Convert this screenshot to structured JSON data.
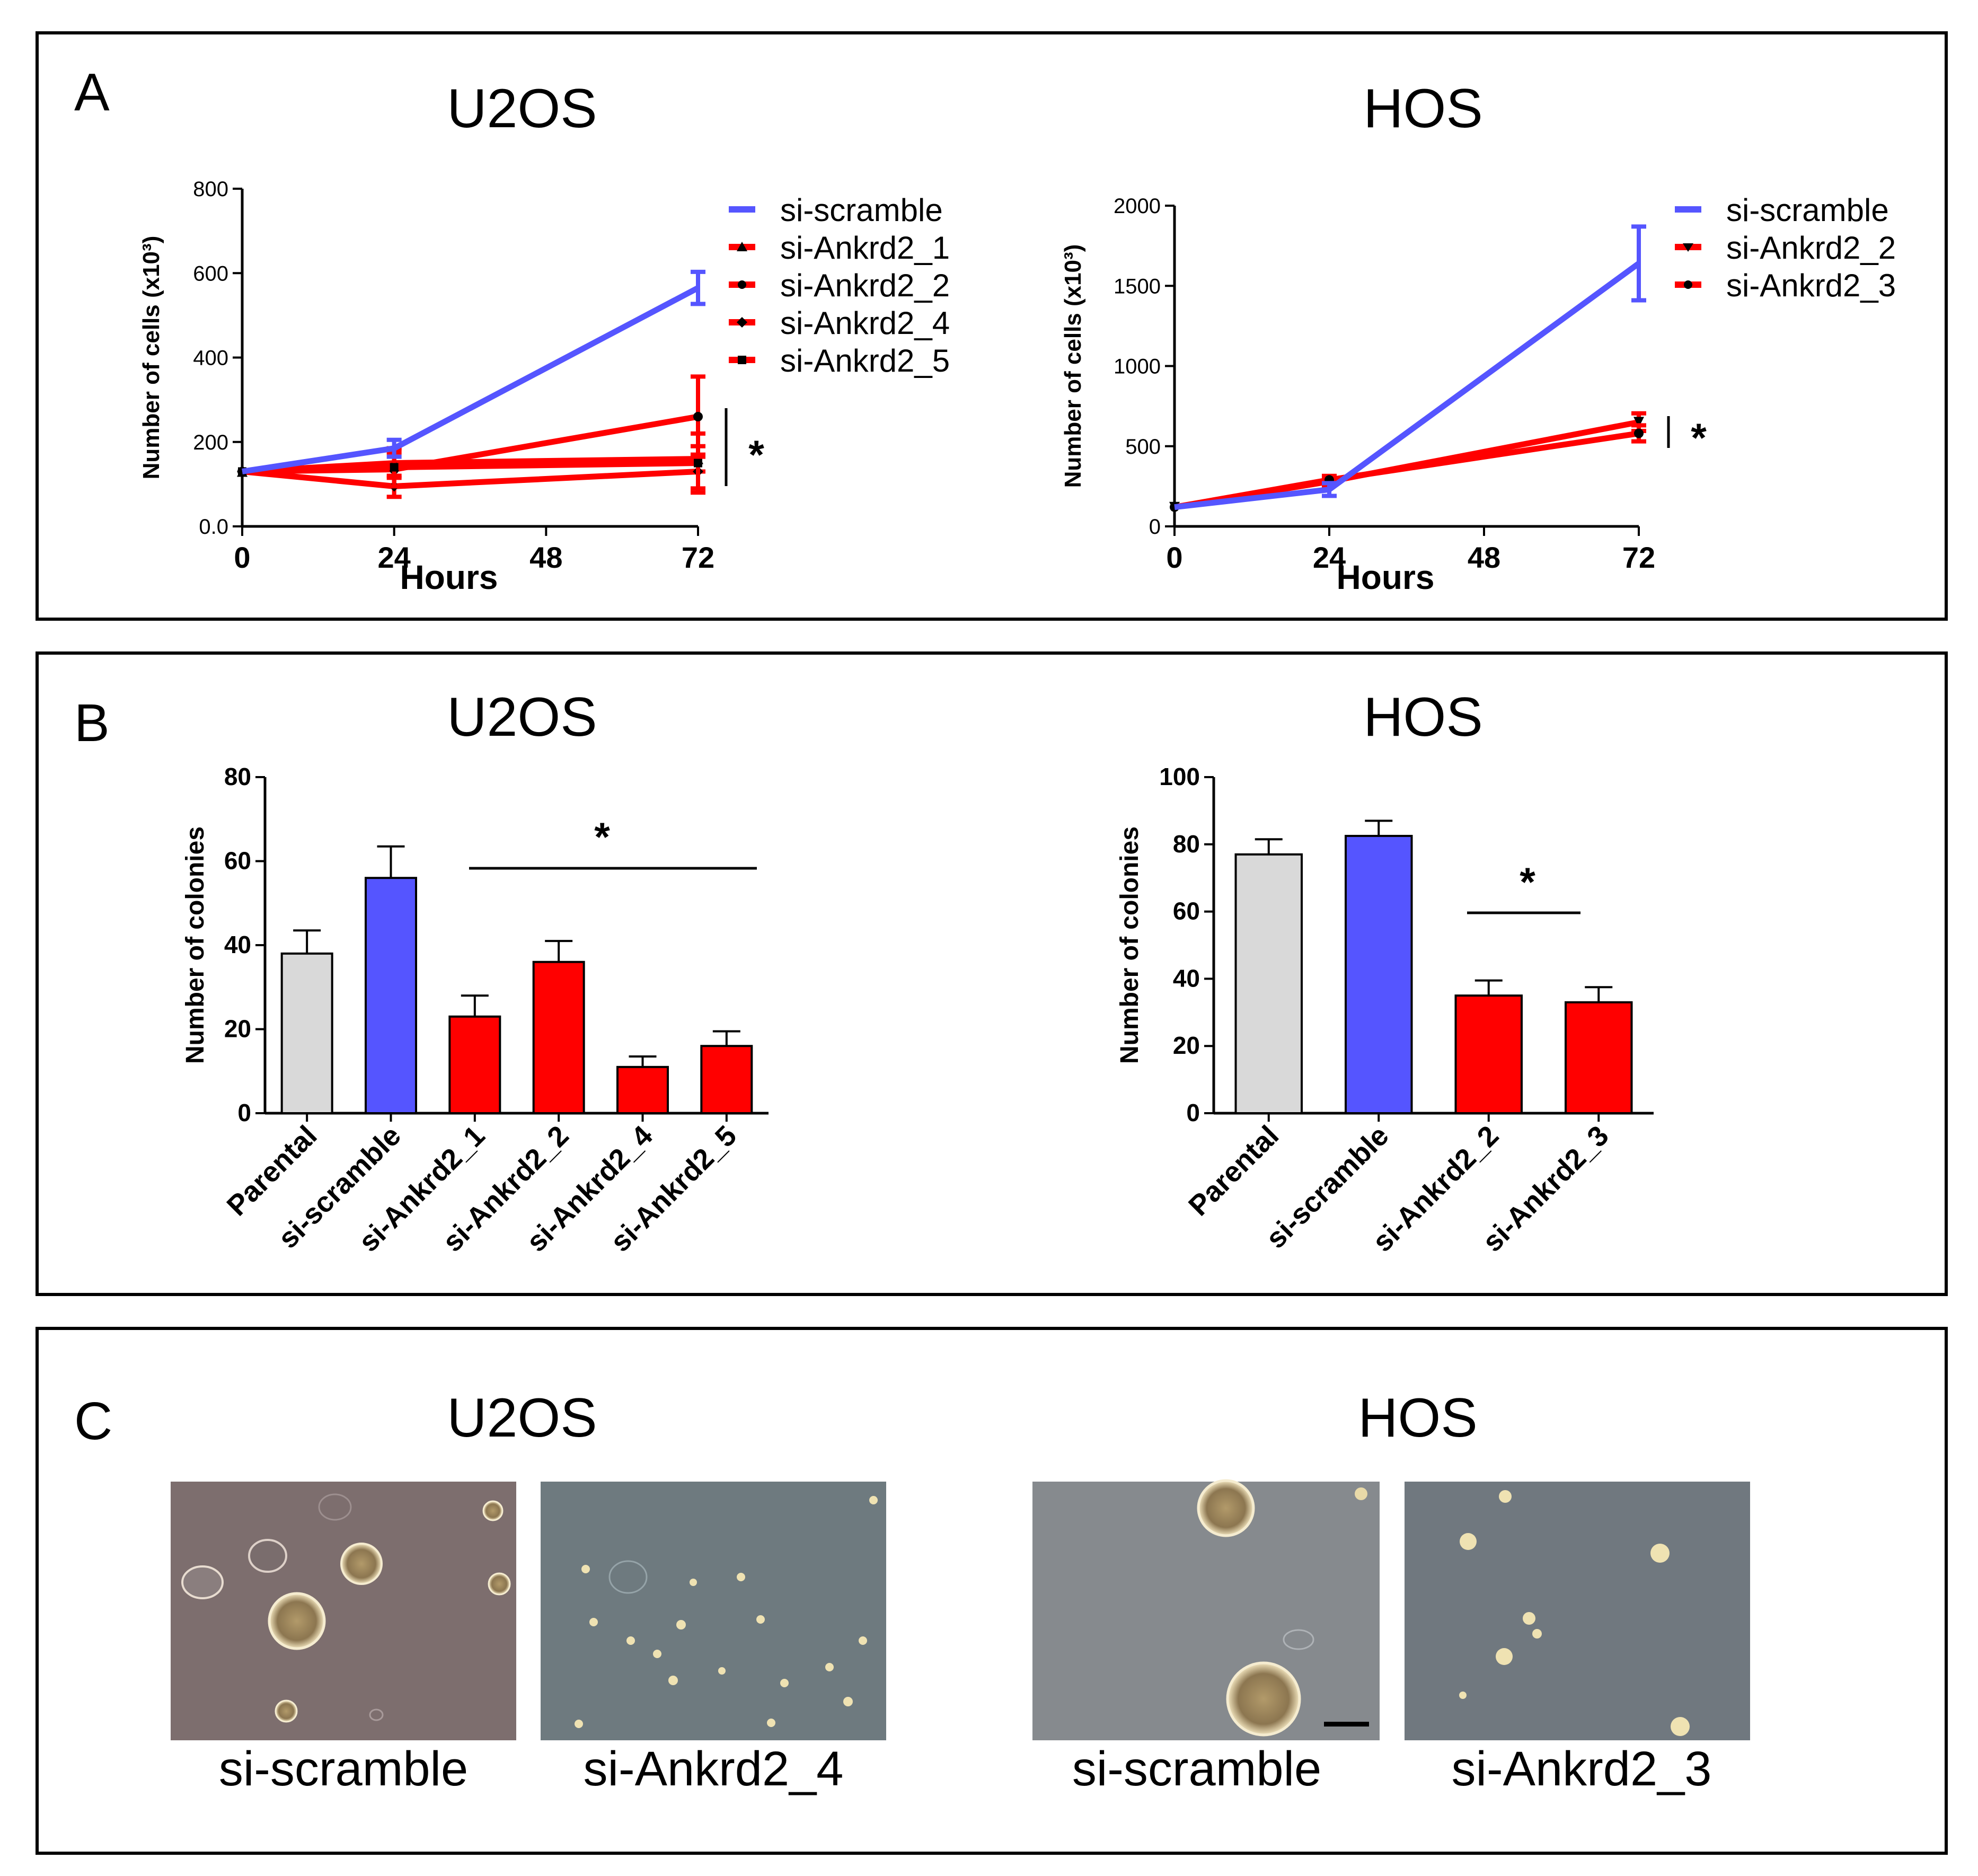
{
  "panels": {
    "A": {
      "letter": "A",
      "charts": [
        {
          "cell_line": "U2OS",
          "legend": [
            "si-scramble",
            "si-Ankrd2_1",
            "si-Ankrd2_2",
            "si-Ankrd2_4",
            "si-Ankrd2_5"
          ],
          "significance": "*"
        },
        {
          "cell_line": "HOS",
          "legend": [
            "si-scramble",
            "si-Ankrd2_2",
            "si-Ankrd2_3"
          ],
          "significance": "*"
        }
      ]
    },
    "B": {
      "letter": "B",
      "charts": [
        {
          "cell_line": "U2OS",
          "significance": "*"
        },
        {
          "cell_line": "HOS",
          "significance": "*"
        }
      ]
    },
    "C": {
      "letter": "C",
      "groups": [
        {
          "cell_line": "U2OS",
          "captions": [
            "si-scramble",
            "si-Ankrd2_4"
          ]
        },
        {
          "cell_line": "HOS",
          "captions": [
            "si-scramble",
            "si-Ankrd2_3"
          ]
        }
      ]
    }
  },
  "colors": {
    "scramble": "#5555ff",
    "knockdown": "#ff0000",
    "parental": "#d9d9d9",
    "axis": "#000000"
  },
  "chart_data": [
    {
      "type": "line",
      "title": "U2OS",
      "xlabel": "Hours",
      "ylabel": "Number of cells (x10³)",
      "x": [
        0,
        24,
        72
      ],
      "xticks": [
        "0",
        "24",
        "48",
        "72"
      ],
      "xlim": [
        0,
        72
      ],
      "yticks": [
        "0.0",
        "200",
        "400",
        "600",
        "800"
      ],
      "ylim": [
        0,
        800
      ],
      "series": [
        {
          "name": "si-scramble",
          "color": "#5555ff",
          "marker": "none",
          "values": [
            130,
            185,
            565
          ],
          "errors": [
            0,
            20,
            38
          ]
        },
        {
          "name": "si-Ankrd2_1",
          "color": "#ff0000",
          "marker": "triangle",
          "values": [
            130,
            150,
            160
          ],
          "errors": [
            0,
            35,
            30
          ]
        },
        {
          "name": "si-Ankrd2_2",
          "color": "#ff0000",
          "marker": "circle",
          "values": [
            130,
            135,
            260
          ],
          "errors": [
            0,
            40,
            95
          ]
        },
        {
          "name": "si-Ankrd2_4",
          "color": "#ff0000",
          "marker": "diamond",
          "values": [
            130,
            95,
            130
          ],
          "errors": [
            0,
            25,
            40
          ]
        },
        {
          "name": "si-Ankrd2_5",
          "color": "#ff0000",
          "marker": "square",
          "values": [
            130,
            140,
            150
          ],
          "errors": [
            0,
            45,
            70
          ]
        }
      ]
    },
    {
      "type": "line",
      "title": "HOS",
      "xlabel": "Hours",
      "ylabel": "Number of cells (x10³)",
      "x": [
        0,
        24,
        72
      ],
      "xticks": [
        "0",
        "24",
        "48",
        "72"
      ],
      "xlim": [
        0,
        72
      ],
      "yticks": [
        "0",
        "500",
        "1000",
        "1500",
        "2000"
      ],
      "ylim": [
        0,
        2000
      ],
      "series": [
        {
          "name": "si-scramble",
          "color": "#5555ff",
          "marker": "none",
          "values": [
            120,
            230,
            1640
          ],
          "errors": [
            0,
            40,
            230
          ]
        },
        {
          "name": "si-Ankrd2_2",
          "color": "#ff0000",
          "marker": "triangle-down",
          "values": [
            120,
            280,
            650
          ],
          "errors": [
            0,
            25,
            55
          ]
        },
        {
          "name": "si-Ankrd2_3",
          "color": "#ff0000",
          "marker": "circle",
          "values": [
            120,
            290,
            580
          ],
          "errors": [
            0,
            25,
            50
          ]
        }
      ]
    },
    {
      "type": "bar",
      "title": "U2OS",
      "xlabel": "",
      "ylabel": "Number of colonies",
      "categories": [
        "Parental",
        "si-scramble",
        "si-Ankrd2_1",
        "si-Ankrd2_2",
        "si-Ankrd2_4",
        "si-Ankrd2_5"
      ],
      "values": [
        38,
        56,
        23,
        36,
        11,
        16
      ],
      "errors": [
        5.5,
        7.5,
        5,
        5,
        2.5,
        3.5
      ],
      "colors": [
        "#d9d9d9",
        "#5555ff",
        "#ff0000",
        "#ff0000",
        "#ff0000",
        "#ff0000"
      ],
      "yticks": [
        "0",
        "20",
        "40",
        "60",
        "80"
      ],
      "ylim": [
        0,
        80
      ]
    },
    {
      "type": "bar",
      "title": "HOS",
      "xlabel": "",
      "ylabel": "Number of colonies",
      "categories": [
        "Parental",
        "si-scramble",
        "si-Ankrd2_2",
        "si-Ankrd2_3"
      ],
      "values": [
        77,
        82.5,
        35,
        33
      ],
      "errors": [
        4.5,
        4.5,
        4.5,
        4.5
      ],
      "colors": [
        "#d9d9d9",
        "#5555ff",
        "#ff0000",
        "#ff0000"
      ],
      "yticks": [
        "0",
        "20",
        "40",
        "60",
        "80",
        "100"
      ],
      "ylim": [
        0,
        100
      ]
    }
  ]
}
